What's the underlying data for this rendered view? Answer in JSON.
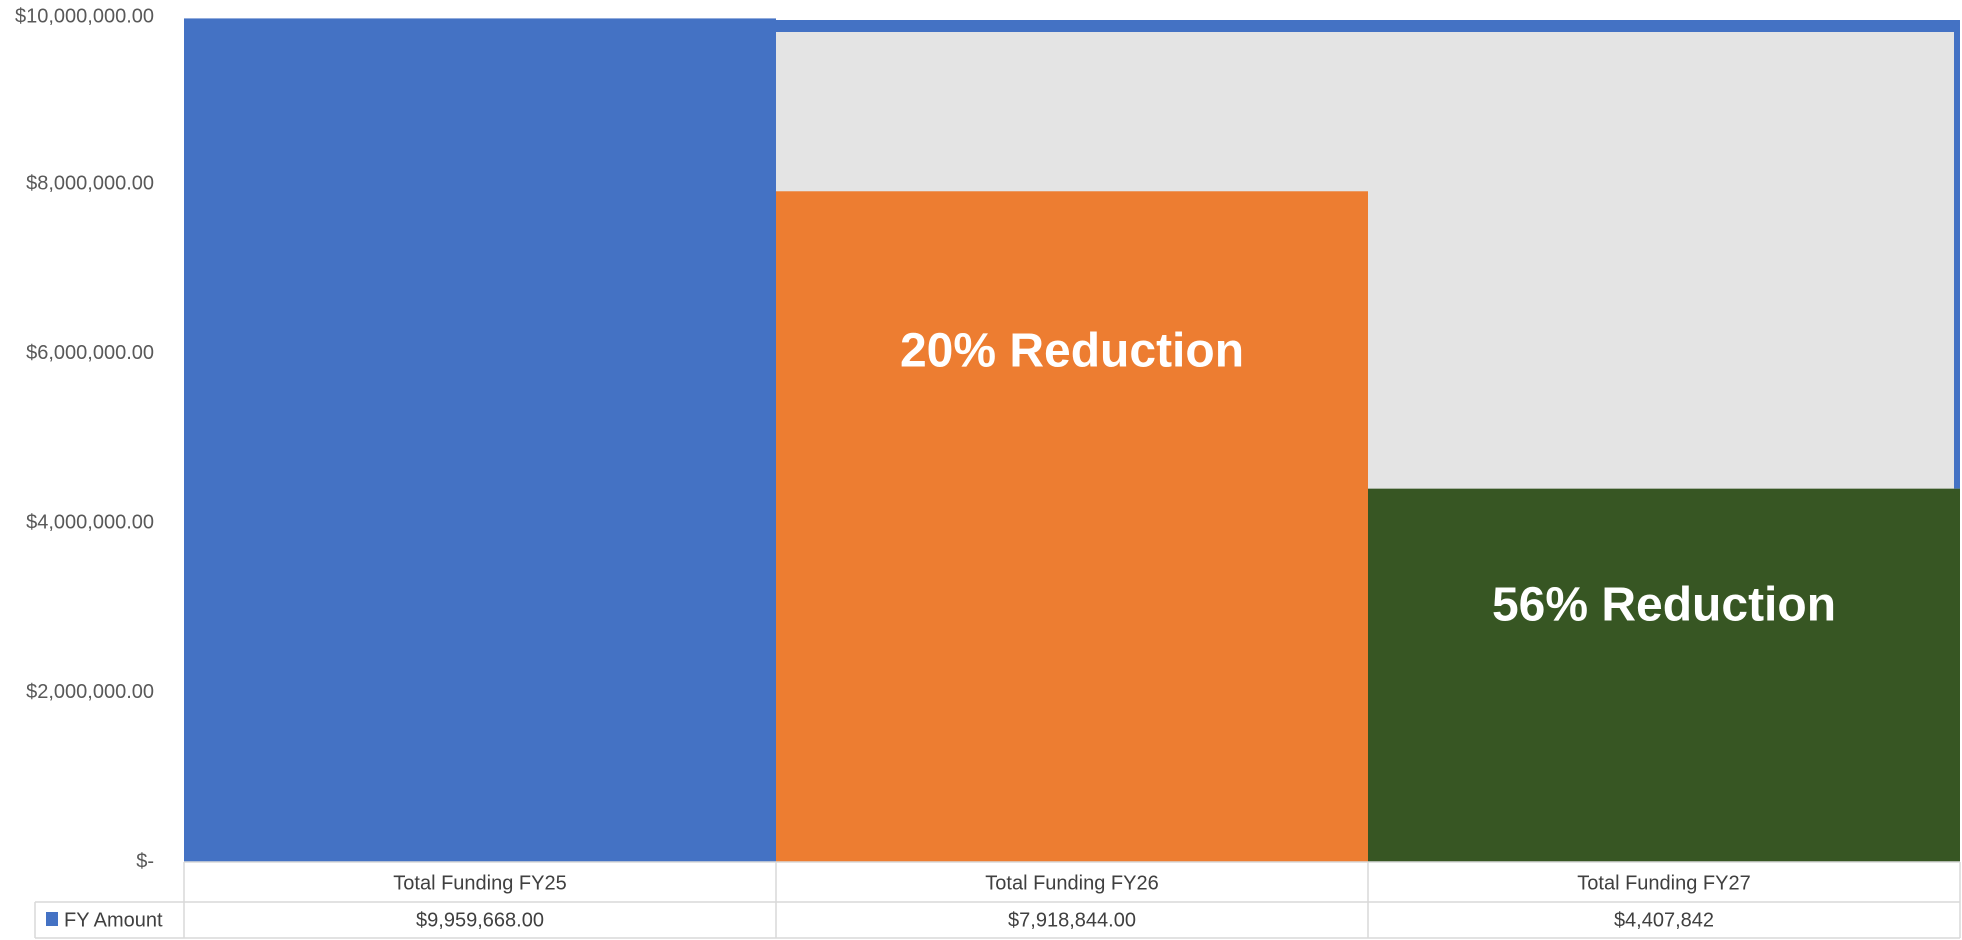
{
  "chart_data": {
    "type": "bar",
    "categories": [
      "Total Funding FY25",
      "Total Funding FY26",
      "Total Funding FY27"
    ],
    "series": [
      {
        "name": "FY Amount",
        "values": [
          9959668.0,
          7918844.0,
          4407842
        ],
        "value_labels": [
          "$9,959,668.00",
          "$7,918,844.00",
          "$4,407,842"
        ],
        "colors": [
          "#4472C4",
          "#ED7D31",
          "#375623"
        ]
      }
    ],
    "ylim": [
      0,
      10000000
    ],
    "y_ticks": [
      {
        "value": 0,
        "label": "$-"
      },
      {
        "value": 2000000,
        "label": "$2,000,000.00"
      },
      {
        "value": 4000000,
        "label": "$4,000,000.00"
      },
      {
        "value": 6000000,
        "label": "$6,000,000.00"
      },
      {
        "value": 8000000,
        "label": "$8,000,000.00"
      },
      {
        "value": 10000000,
        "label": "$10,000,000.00"
      }
    ],
    "grid": false,
    "legend": "data-table",
    "annotations": [
      {
        "category_index": 1,
        "text": "20% Reduction",
        "y": 6000000
      },
      {
        "category_index": 2,
        "text": "56% Reduction",
        "y": 3000000
      }
    ],
    "reference_box": {
      "from_category_index": 1,
      "to_category_index": 2,
      "level": 9800000,
      "fill": "#E4E4E4",
      "stroke": "#4472C4"
    }
  }
}
